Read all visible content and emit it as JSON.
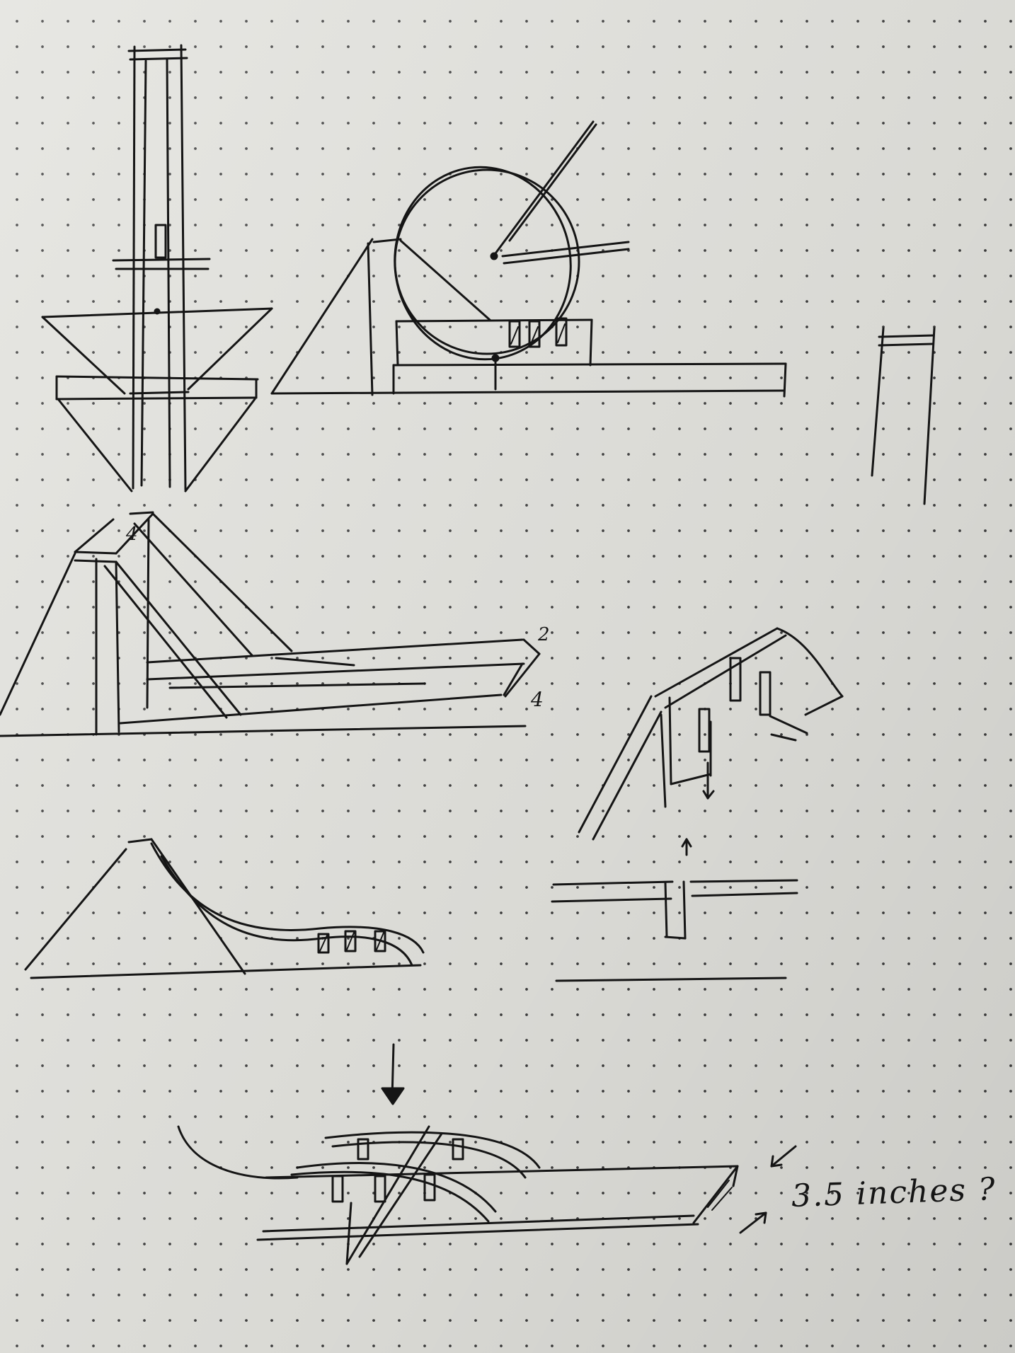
{
  "annotations": {
    "size_note": "3.5 inches ?",
    "dimension_top": "2",
    "dimension_side": "4",
    "dimension_post": "4"
  },
  "colors": {
    "paper": "#e2e2dd",
    "ink": "#151515",
    "dot_grid": "#3d3d3d"
  }
}
